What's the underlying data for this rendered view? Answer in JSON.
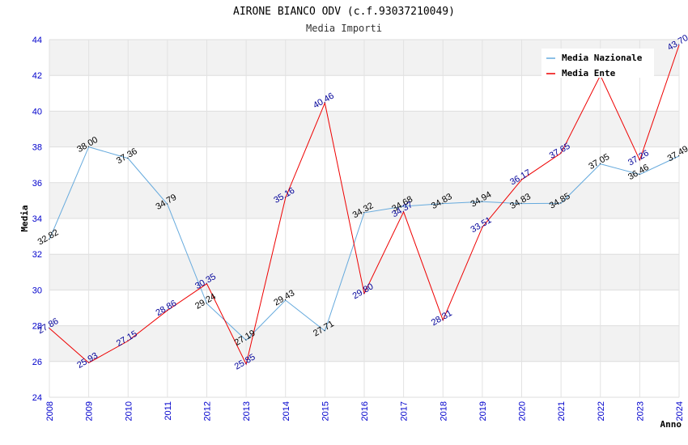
{
  "chart_data": {
    "type": "line",
    "title": "AIRONE BIANCO ODV (c.f.93037210049)",
    "subtitle": "Media Importi",
    "xlabel": "Anno",
    "ylabel": "Media",
    "ylim": [
      24,
      44
    ],
    "yticks": [
      "24",
      "26",
      "28",
      "30",
      "32",
      "34",
      "36",
      "38",
      "40",
      "42",
      "44"
    ],
    "categories": [
      "2008",
      "2009",
      "2010",
      "2011",
      "2012",
      "2013",
      "2014",
      "2015",
      "2016",
      "2017",
      "2018",
      "2019",
      "2020",
      "2021",
      "2022",
      "2023",
      "2024"
    ],
    "grid": true,
    "legend_position": "top-right",
    "series": [
      {
        "name": "Media Nazionale",
        "color": "#66aadd",
        "label_color": "#000000",
        "values": [
          32.82,
          38.0,
          37.36,
          34.79,
          29.24,
          27.19,
          29.43,
          27.71,
          34.32,
          34.68,
          34.83,
          34.94,
          34.83,
          34.85,
          37.05,
          36.46,
          37.49
        ],
        "labels": [
          "32.82",
          "38.00",
          "37.36",
          "34.79",
          "29.24",
          "27.19",
          "29.43",
          "27.71",
          "34.32",
          "34.68",
          "34.83",
          "34.94",
          "34.83",
          "34.85",
          "37.05",
          "36.46",
          "37.49"
        ]
      },
      {
        "name": "Media Ente",
        "color": "#ee0000",
        "label_color": "#000099",
        "values": [
          27.86,
          25.93,
          27.15,
          28.86,
          30.35,
          25.85,
          35.16,
          40.46,
          29.8,
          34.37,
          28.31,
          33.51,
          36.17,
          37.65,
          42.0,
          37.26,
          43.7
        ],
        "labels": [
          "27.86",
          "25.93",
          "27.15",
          "28.86",
          "30.35",
          "25.85",
          "35.16",
          "40.46",
          "29.80",
          "34.37",
          "28.31",
          "33.51",
          "36.17",
          "37.65",
          "",
          "37.26",
          "43.70"
        ]
      }
    ]
  }
}
